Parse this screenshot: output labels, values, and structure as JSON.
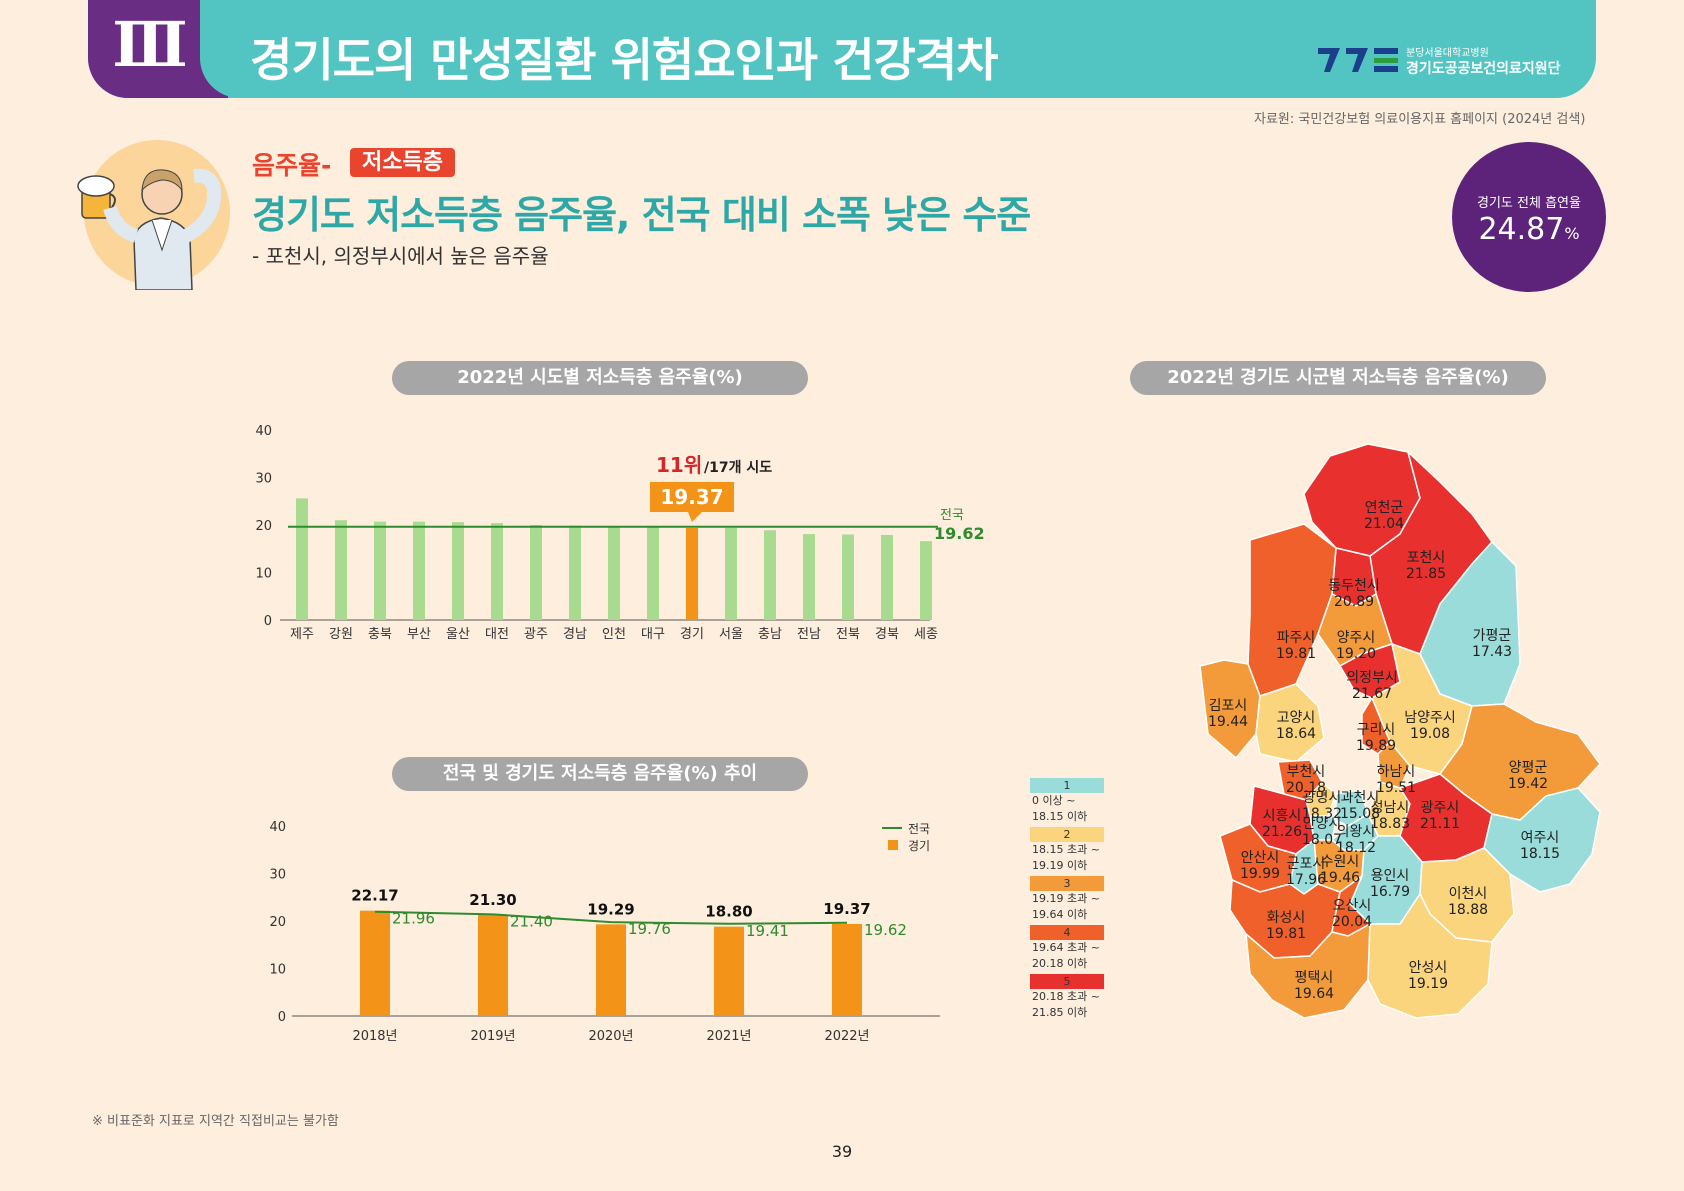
{
  "header": {
    "chapter": "Ⅲ",
    "title": "경기도의 만성질환 위험요인과 건강격차",
    "logo_sub": "분당서울대학교병원",
    "logo_name": "경기도공공보건의료지원단"
  },
  "source": "자료원: 국민건강보험 의료이용지표 홈페이지 (2024년 검색)",
  "intro": {
    "topic": "음주율-",
    "tag": "저소득층",
    "headline": "경기도 저소득층 음주율, 전국 대비 소폭 낮은 수준",
    "subline": "- 포천시, 의정부시에서 높은 음주율"
  },
  "badge": {
    "label": "경기도 전체 흡연율",
    "value": "24.87",
    "unit": "%"
  },
  "colors": {
    "teal": "#52c5c2",
    "purple": "#5d2279",
    "bar_green": "#a8db8f",
    "bar_orange": "#f39318",
    "line_green": "#2e8b2e",
    "map_1": "#9adcd9",
    "map_2": "#fbd57e",
    "map_3": "#f39a3b",
    "map_4": "#f0602a",
    "map_5": "#e8312f"
  },
  "chart_data": [
    {
      "type": "bar",
      "title": "2022년 시도별 저소득층 음주율(%)",
      "categories": [
        "제주",
        "강원",
        "충북",
        "부산",
        "울산",
        "대전",
        "광주",
        "경남",
        "인천",
        "대구",
        "경기",
        "서울",
        "충남",
        "전남",
        "전북",
        "경북",
        "세종"
      ],
      "values": [
        25.6,
        21.0,
        20.7,
        20.7,
        20.6,
        20.4,
        20.0,
        19.9,
        19.7,
        19.6,
        19.37,
        19.4,
        18.9,
        18.1,
        18.0,
        17.9,
        16.6
      ],
      "highlight": "경기",
      "highlight_value": "19.37",
      "rank_label": "11위",
      "rank_suffix": "/17개 시도",
      "reference_line": {
        "name": "전국",
        "value": 19.62,
        "label": "19.62"
      },
      "yticks": [
        "0",
        "10",
        "20",
        "30",
        "40"
      ],
      "ylim": [
        0,
        40
      ]
    },
    {
      "type": "bar",
      "title": "전국 및 경기도 저소득층 음주율(%) 추이",
      "categories": [
        "2018년",
        "2019년",
        "2020년",
        "2021년",
        "2022년"
      ],
      "series": [
        {
          "name": "경기",
          "values": [
            22.17,
            21.3,
            19.29,
            18.8,
            19.37
          ],
          "labels": [
            "22.17",
            "21.30",
            "19.29",
            "18.80",
            "19.37"
          ]
        },
        {
          "name": "전국",
          "values": [
            21.96,
            21.4,
            19.76,
            19.41,
            19.62
          ],
          "labels": [
            "21.96",
            "21.40",
            "19.76",
            "19.41",
            "19.62"
          ]
        }
      ],
      "yticks": [
        "0",
        "10",
        "20",
        "30",
        "40"
      ],
      "ylim": [
        0,
        40
      ]
    }
  ],
  "map": {
    "title": "2022년 경기도 시군별 저소득층 음주율(%)",
    "legend": [
      {
        "num": "1",
        "text": "0 이상 ~ 18.15 이하"
      },
      {
        "num": "2",
        "text": "18.15 초과 ~ 19.19 이하"
      },
      {
        "num": "3",
        "text": "19.19 초과 ~ 19.64 이하"
      },
      {
        "num": "4",
        "text": "19.64 초과 ~ 20.18 이하"
      },
      {
        "num": "5",
        "text": "20.18 초과 ~ 21.85 이하"
      }
    ],
    "regions": [
      {
        "name": "연천군",
        "value": "21.04",
        "cls": 5
      },
      {
        "name": "포천시",
        "value": "21.85",
        "cls": 5
      },
      {
        "name": "동두천시",
        "value": "20.89",
        "cls": 5
      },
      {
        "name": "파주시",
        "value": "19.81",
        "cls": 4
      },
      {
        "name": "양주시",
        "value": "19.20",
        "cls": 3
      },
      {
        "name": "가평군",
        "value": "17.43",
        "cls": 1
      },
      {
        "name": "의정부시",
        "value": "21.67",
        "cls": 5
      },
      {
        "name": "김포시",
        "value": "19.44",
        "cls": 3
      },
      {
        "name": "고양시",
        "value": "18.64",
        "cls": 2
      },
      {
        "name": "남양주시",
        "value": "19.08",
        "cls": 2
      },
      {
        "name": "구리시",
        "value": "19.89",
        "cls": 4
      },
      {
        "name": "부천시",
        "value": "20.18",
        "cls": 4
      },
      {
        "name": "하남시",
        "value": "19.51",
        "cls": 3
      },
      {
        "name": "양평군",
        "value": "19.42",
        "cls": 3
      },
      {
        "name": "광명시",
        "value": "18.32",
        "cls": 2
      },
      {
        "name": "과천시",
        "value": "15.08",
        "cls": 1
      },
      {
        "name": "안양시",
        "value": "18.07",
        "cls": 1
      },
      {
        "name": "시흥시",
        "value": "21.26",
        "cls": 5
      },
      {
        "name": "성남시",
        "value": "18.83",
        "cls": 2
      },
      {
        "name": "광주시",
        "value": "21.11",
        "cls": 5
      },
      {
        "name": "의왕시",
        "value": "18.12",
        "cls": 1
      },
      {
        "name": "안산시",
        "value": "19.99",
        "cls": 4
      },
      {
        "name": "수원시",
        "value": "19.46",
        "cls": 3
      },
      {
        "name": "여주시",
        "value": "18.15",
        "cls": 1
      },
      {
        "name": "용인시",
        "value": "16.79",
        "cls": 1
      },
      {
        "name": "이천시",
        "value": "18.88",
        "cls": 2
      },
      {
        "name": "군포시",
        "value": "17.96",
        "cls": 1
      },
      {
        "name": "화성시",
        "value": "19.81",
        "cls": 4
      },
      {
        "name": "오산시",
        "value": "20.04",
        "cls": 4
      },
      {
        "name": "평택시",
        "value": "19.64",
        "cls": 3
      },
      {
        "name": "안성시",
        "value": "19.19",
        "cls": 2
      }
    ]
  },
  "footnote": "※ 비표준화 지표로 지역간 직접비교는 불가함",
  "page_number": "39"
}
